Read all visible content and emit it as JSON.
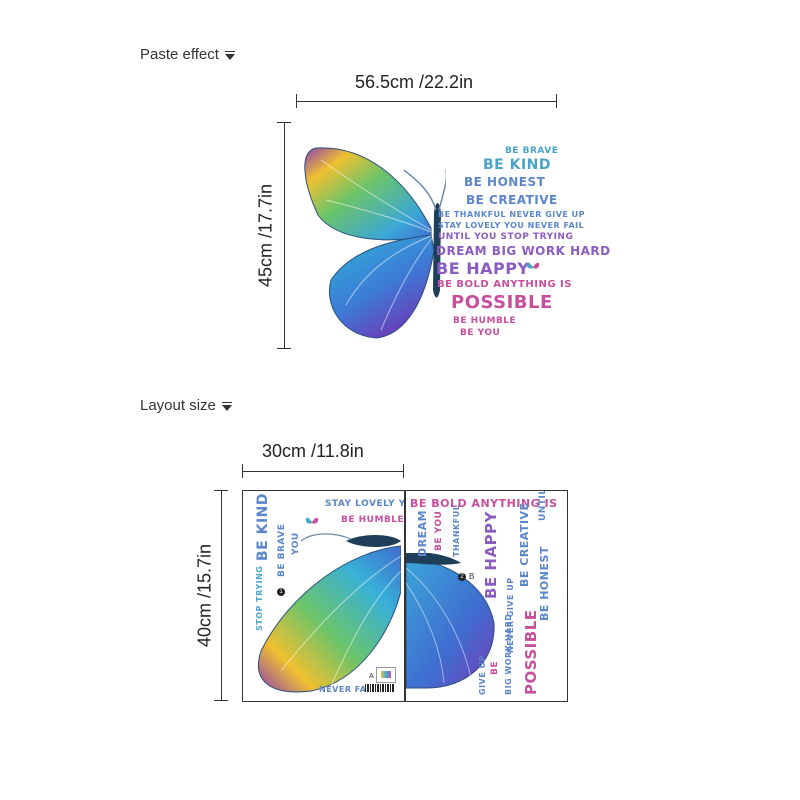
{
  "sections": {
    "paste_effect": {
      "label": "Paste effect",
      "width_label": "56.5cm /22.2in",
      "height_label": "45cm /17.7in",
      "words": [
        {
          "text": "BE BRAVE"
        },
        {
          "text": "BE KIND"
        },
        {
          "text": "BE HONEST"
        },
        {
          "text": "BE CREATIVE"
        },
        {
          "text": "BE THANKFUL NEVER GIVE UP"
        },
        {
          "text": "STAY LOVELY YOU NEVER FAIL"
        },
        {
          "text": "UNTIL YOU STOP TRYING"
        },
        {
          "text": "DREAM BIG WORK HARD"
        },
        {
          "text": "BE HAPPY"
        },
        {
          "text": "BE BOLD ANYTHING IS"
        },
        {
          "text": "POSSIBLE"
        },
        {
          "text": "BE HUMBLE"
        },
        {
          "text": "BE YOU"
        }
      ]
    },
    "layout_size": {
      "label": "Layout size",
      "width_label": "30cm /11.8in",
      "height_label": "40cm /15.7in",
      "sheet_a": {
        "letter": "A",
        "marker": "1",
        "words": {
          "stay_lovely": "STAY LOVELY YOU",
          "be_humble": "BE HUMBLE",
          "be_kind": "BE KIND",
          "be_brave": "BE BRAVE",
          "you": "YOU",
          "stop_trying": "STOP TRYING",
          "never_fail": "NEVER FAIL"
        }
      },
      "sheet_b": {
        "letter": "B",
        "marker": "2",
        "words": {
          "be_bold": "BE BOLD ANYTHING IS",
          "until": "UNTIL",
          "dream": "DREAM",
          "be_you": "BE YOU",
          "thankful": "THANKFUL",
          "be_happy": "BE HAPPY",
          "never_give_up": "NEVER GIVE UP",
          "be_creative": "BE CREATIVE",
          "be_honest": "BE HONEST",
          "big_work_hard": "BIG WORK HARD",
          "possible": "POSSIBLE",
          "be": "BE",
          "give_up": "GIVE UP"
        }
      }
    }
  },
  "colors": {
    "blue": "#5b86c9",
    "teal": "#4aa4c6",
    "violet": "#8b5cc0",
    "pink": "#c84e9e"
  }
}
